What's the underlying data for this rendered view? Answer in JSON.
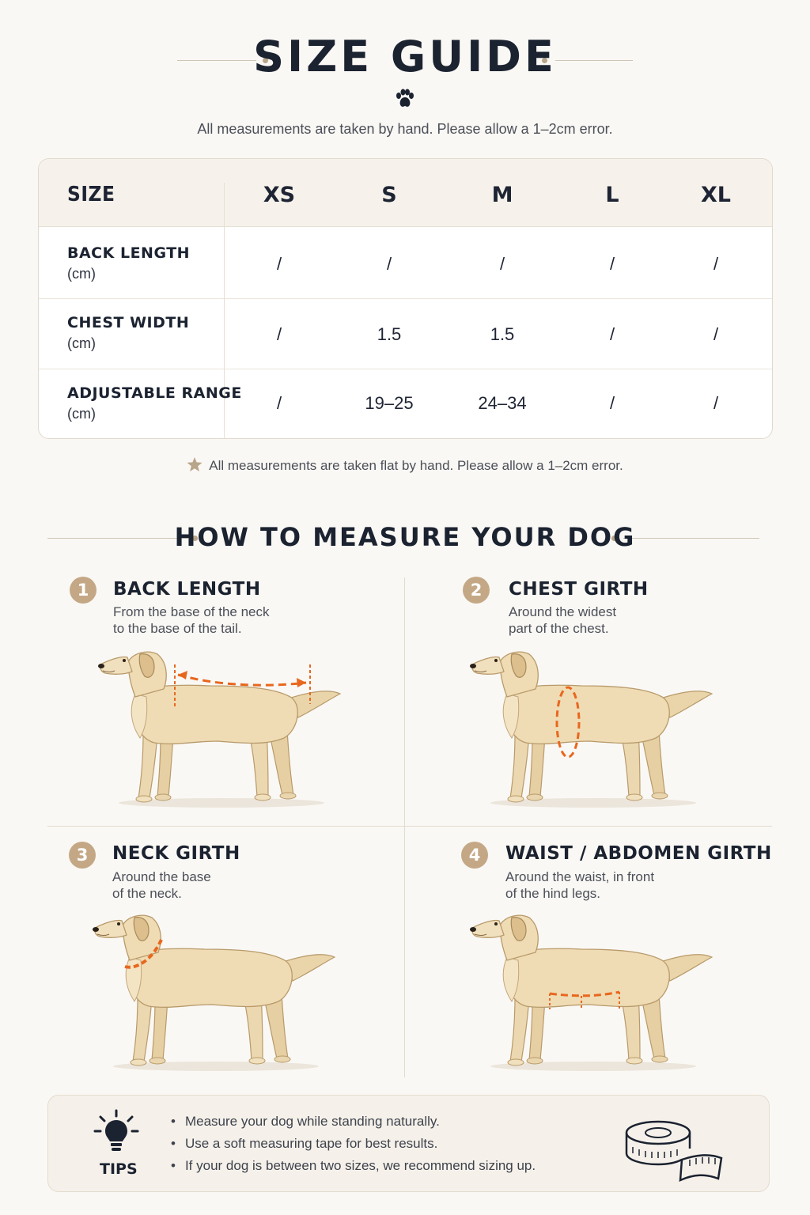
{
  "header": {
    "title": "SIZE GUIDE",
    "subtitle": "All measurements are taken by hand. Please allow a 1–2cm error."
  },
  "table": {
    "size_label": "SIZE",
    "columns": [
      "XS",
      "S",
      "M",
      "L",
      "XL"
    ],
    "rows": [
      {
        "label": "BACK LENGTH",
        "unit": "(cm)",
        "values": [
          "/",
          "/",
          "/",
          "/",
          "/"
        ]
      },
      {
        "label": "CHEST WIDTH",
        "unit": "(cm)",
        "values": [
          "/",
          "1.5",
          "1.5",
          "/",
          "/"
        ]
      },
      {
        "label": "ADJUSTABLE RANGE",
        "unit": "(cm)",
        "values": [
          "/",
          "19–25",
          "24–34",
          "/",
          "/"
        ]
      }
    ],
    "note": "All measurements are taken flat by hand. Please allow a 1–2cm error."
  },
  "measure": {
    "title": "HOW TO MEASURE YOUR DOG",
    "items": [
      {
        "num": "1",
        "title": "BACK LENGTH",
        "line1": "From the base of the neck",
        "line2": "to the base of the tail.",
        "icon": "dog-back-length-illustration"
      },
      {
        "num": "2",
        "title": "CHEST GIRTH",
        "line1": "Around the widest",
        "line2": "part of the chest.",
        "icon": "dog-chest-girth-illustration"
      },
      {
        "num": "3",
        "title": "NECK GIRTH",
        "line1": "Around the base",
        "line2": "of the neck.",
        "icon": "dog-neck-girth-illustration"
      },
      {
        "num": "4",
        "title": "WAIST / ABDOMEN GIRTH",
        "line1": "Around the waist, in front",
        "line2": "of the hind legs.",
        "icon": "dog-waist-girth-illustration"
      }
    ]
  },
  "tips": {
    "label": "TIPS",
    "items": [
      "Measure your dog while standing naturally.",
      "Use a soft measuring tape for best results.",
      "If your dog is between two sizes, we recommend sizing up."
    ]
  },
  "colors": {
    "accent": "#c4a886",
    "measure_line": "#e8671e",
    "dog_fur": "#edd9b0",
    "text_dark": "#1b2230",
    "background": "#faf8f4"
  }
}
